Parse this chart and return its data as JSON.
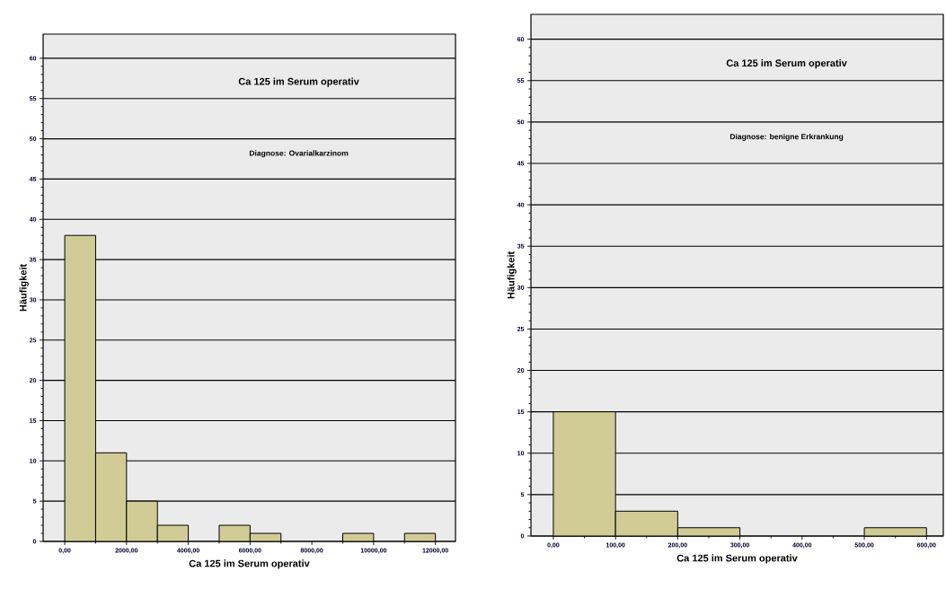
{
  "chart_data": [
    {
      "type": "histogram",
      "title": "Ca 125 im Serum operativ",
      "subtitle": "Diagnose: Ovarialkarzinom",
      "xlabel": "Ca 125 im Serum operativ",
      "ylabel": "Häufigkeit",
      "bins": [
        0,
        1000,
        2000,
        3000,
        4000,
        5000,
        6000,
        7000,
        8000,
        9000,
        10000,
        11000,
        12000
      ],
      "values": [
        38,
        11,
        5,
        2,
        0,
        2,
        1,
        0,
        0,
        1,
        0,
        1
      ],
      "color": "#d1cc96",
      "xlim": [
        -700,
        12650
      ],
      "ylim": [
        0,
        63
      ],
      "xticks": [
        {
          "value": 0,
          "label": "0,00"
        },
        {
          "value": 2000,
          "label": "2000,00"
        },
        {
          "value": 4000,
          "label": "4000,00"
        },
        {
          "value": 6000,
          "label": "6000,00"
        },
        {
          "value": 8000,
          "label": "8000,00"
        },
        {
          "value": 10000,
          "label": "10000,00"
        },
        {
          "value": 12000,
          "label": "12000,00"
        }
      ],
      "yticks": [
        0,
        5,
        10,
        15,
        20,
        25,
        30,
        35,
        40,
        45,
        50,
        55,
        60
      ],
      "grid": "y"
    },
    {
      "type": "histogram",
      "title": "Ca 125 im Serum operativ",
      "subtitle": "Diagnose: benigne Erkrankung",
      "xlabel": "Ca 125 im Serum operativ",
      "ylabel": "Häufigkeit",
      "bins": [
        0,
        100,
        200,
        300,
        400,
        500,
        600
      ],
      "values": [
        15,
        3,
        1,
        0,
        0,
        1
      ],
      "color": "#d1cc96",
      "xlim": [
        -36,
        627
      ],
      "ylim": [
        0,
        63
      ],
      "xticks": [
        {
          "value": 0,
          "label": "0,00"
        },
        {
          "value": 100,
          "label": "100,00"
        },
        {
          "value": 200,
          "label": "200,00"
        },
        {
          "value": 300,
          "label": "300,00"
        },
        {
          "value": 400,
          "label": "400,00"
        },
        {
          "value": 500,
          "label": "500,00"
        },
        {
          "value": 600,
          "label": "600,00"
        }
      ],
      "yticks": [
        0,
        5,
        10,
        15,
        20,
        25,
        30,
        35,
        40,
        45,
        50,
        55,
        60
      ],
      "grid": "y"
    }
  ]
}
